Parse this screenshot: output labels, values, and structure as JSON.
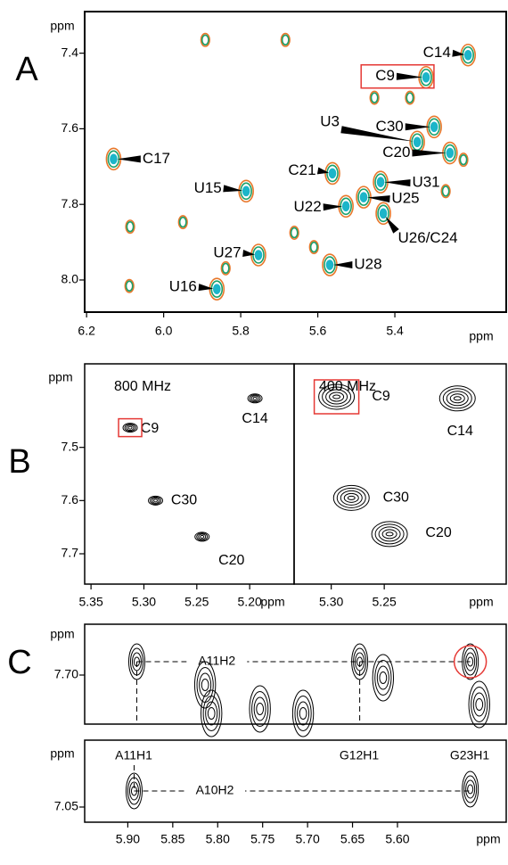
{
  "chart_data": [
    {
      "type": "scatter",
      "panel": "A",
      "x_label": "ppm",
      "y_label": "ppm",
      "xlim": [
        6.205,
        5.111
      ],
      "ylim": [
        7.29,
        8.085
      ],
      "xticks": [
        6.2,
        {
          "value": 6,
          "label": "6.0"
        },
        5.8,
        5.6,
        5.4
      ],
      "yticks": [
        7.4,
        7.6,
        7.8,
        {
          "value": 8,
          "label": "8.0"
        }
      ],
      "colors": [
        "#e8772a",
        "#1aa06a",
        "#1cb5c9"
      ],
      "highlight": {
        "peak": 1,
        "color": "#e53935"
      },
      "peaks": {
        "labels": [
          "C14",
          "C9",
          "C17",
          "U3",
          "C30",
          "C20",
          "C21",
          "U31",
          "U15",
          "U25",
          "U22",
          "U26/C24",
          "U27",
          "U28",
          "U16",
          null,
          null,
          null,
          null,
          null,
          null,
          null,
          null,
          null,
          null,
          null,
          null
        ],
        "x": [
          5.21,
          5.319,
          6.13,
          5.342,
          5.298,
          5.257,
          5.562,
          5.437,
          5.786,
          5.481,
          5.527,
          5.43,
          5.754,
          5.569,
          5.862,
          5.892,
          5.684,
          5.453,
          6.087,
          5.95,
          5.661,
          5.61,
          5.839,
          6.089,
          5.268,
          5.361,
          5.222
        ],
        "y": [
          7.405,
          7.464,
          7.68,
          7.635,
          7.595,
          7.664,
          7.718,
          7.741,
          7.765,
          7.781,
          7.805,
          7.824,
          7.934,
          7.96,
          8.024,
          7.365,
          7.365,
          7.518,
          7.859,
          7.847,
          7.875,
          7.913,
          7.969,
          8.016,
          7.765,
          7.518,
          7.682
        ]
      }
    },
    {
      "type": "scatter",
      "panel": "B",
      "annotation": "800 MHz",
      "x_label": "ppm",
      "y_label": "ppm",
      "xlim": [
        5.356,
        5.158
      ],
      "ylim": [
        7.343,
        7.757
      ],
      "xticks": [
        5.35,
        {
          "value": 5.3,
          "label": "5.30"
        },
        5.25,
        {
          "value": 5.2,
          "label": "5.20"
        }
      ],
      "yticks": [
        7.5,
        7.6,
        7.7
      ],
      "color": "#000000",
      "highlight": {
        "peak": 0,
        "color": "#e53935"
      },
      "peaks": {
        "labels": [
          "C9",
          "C14",
          "C30",
          "C20"
        ],
        "x": [
          5.313,
          5.195,
          5.289,
          5.245
        ],
        "y": [
          7.463,
          7.408,
          7.6,
          7.668
        ]
      }
    },
    {
      "type": "scatter",
      "annotation": "400 MHz",
      "x_label": "ppm",
      "xlim": [
        5.335,
        5.135
      ],
      "ylim": [
        7.343,
        7.757
      ],
      "xticks": [
        {
          "value": 5.3,
          "label": "5.30"
        },
        5.25
      ],
      "color": "#000000",
      "highlight": {
        "peak": 0,
        "color": "#e53935"
      },
      "peaks": {
        "labels": [
          "C9",
          "C14",
          "C30",
          "C20"
        ],
        "x": [
          5.295,
          5.181,
          5.281,
          5.245
        ],
        "y": [
          7.405,
          7.408,
          7.595,
          7.663
        ]
      }
    },
    {
      "type": "scatter",
      "panel": "C",
      "y_label": "ppm",
      "line_label": "A11H2",
      "xlim": [
        5.948,
        5.479
      ],
      "ylim": [
        7.643,
        7.755
      ],
      "yticks": [
        {
          "value": 7.7,
          "label": "7.70"
        }
      ],
      "color": "#000000",
      "highlight": {
        "peak": 1,
        "color": "#e53935"
      },
      "peaks": {
        "x": [
          5.89,
          5.519,
          5.642,
          5.807,
          5.753,
          5.705,
          5.616,
          5.509,
          5.814
        ],
        "y": [
          7.685,
          7.685,
          7.685,
          7.743,
          7.738,
          7.743,
          7.703,
          7.733,
          7.711
        ]
      }
    },
    {
      "type": "scatter",
      "y_label": "ppm",
      "x_label": "ppm",
      "line_label": "A10H2",
      "column_labels": [
        "A11H1",
        "G12H1",
        "G23H1"
      ],
      "xlim": [
        5.948,
        5.479
      ],
      "ylim": [
        6.975,
        7.067
      ],
      "xticks": [
        {
          "value": 5.9,
          "label": "5.90"
        },
        5.85,
        {
          "value": 5.8,
          "label": "5.80"
        },
        5.75,
        {
          "value": 5.7,
          "label": "5.70"
        },
        5.65,
        {
          "value": 5.6,
          "label": "5.60"
        }
      ],
      "yticks": [
        7.05
      ],
      "color": "#000000",
      "peaks": {
        "x": [
          5.893,
          5.519
        ],
        "y": [
          7.032,
          7.03
        ]
      }
    }
  ]
}
